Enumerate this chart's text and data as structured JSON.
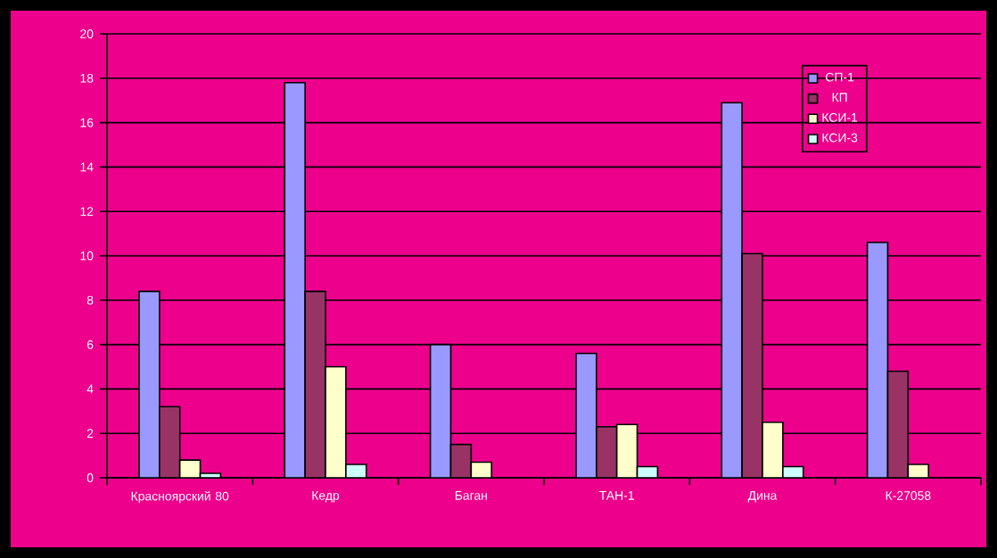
{
  "chart_data": {
    "type": "bar",
    "categories": [
      "Красноярский 80",
      "Кедр",
      "Баган",
      "ТАН-1",
      "Дина",
      "К-27058"
    ],
    "series": [
      {
        "name": "СП-1",
        "color": "#9999ff",
        "values": [
          8.4,
          17.8,
          6.0,
          5.6,
          16.9,
          10.6
        ]
      },
      {
        "name": "КП",
        "color": "#993366",
        "values": [
          3.2,
          8.4,
          1.5,
          2.3,
          10.1,
          4.8
        ]
      },
      {
        "name": "КСИ-1",
        "color": "#ffffcc",
        "values": [
          0.8,
          5.0,
          0.7,
          2.4,
          2.5,
          0.6
        ]
      },
      {
        "name": "КСИ-3",
        "color": "#ccffff",
        "values": [
          0.2,
          0.6,
          null,
          0.5,
          0.5,
          null
        ]
      }
    ],
    "ylim": [
      0,
      20
    ],
    "yticks": [
      0,
      2,
      4,
      6,
      8,
      10,
      12,
      14,
      16,
      18,
      20
    ],
    "grid": "y",
    "legend": "top right"
  }
}
